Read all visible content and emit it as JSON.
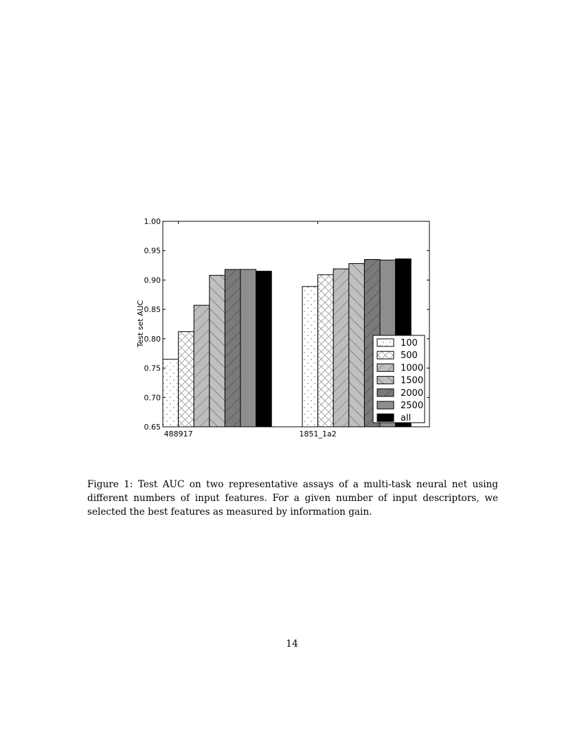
{
  "chart_data": {
    "type": "bar",
    "title": "",
    "xlabel": "",
    "ylabel": "Test set AUC",
    "ylim": [
      0.65,
      1.0
    ],
    "yticks": [
      "0.65",
      "0.70",
      "0.75",
      "0.80",
      "0.85",
      "0.90",
      "0.95",
      "1.00"
    ],
    "categories": [
      "488917",
      "1851_1a2"
    ],
    "grid": false,
    "legend_position": "lower-right",
    "series": [
      {
        "name": "100",
        "values": [
          0.765,
          0.889
        ],
        "fill": "#ffffff",
        "pattern": "dots"
      },
      {
        "name": "500",
        "values": [
          0.812,
          0.909
        ],
        "fill": "#ffffff",
        "pattern": "crosshatch"
      },
      {
        "name": "1000",
        "values": [
          0.857,
          0.919
        ],
        "fill": "#bdbdbd",
        "pattern": "forward-diagonal"
      },
      {
        "name": "1500",
        "values": [
          0.908,
          0.928
        ],
        "fill": "#c0c0c0",
        "pattern": "back-diagonal"
      },
      {
        "name": "2000",
        "values": [
          0.918,
          0.935
        ],
        "fill": "#7a7a7a",
        "pattern": "forward-diagonal"
      },
      {
        "name": "2500",
        "values": [
          0.918,
          0.934
        ],
        "fill": "#8e8e8e",
        "pattern": "none"
      },
      {
        "name": "all",
        "values": [
          0.915,
          0.936
        ],
        "fill": "#000000",
        "pattern": "none"
      }
    ]
  },
  "caption": "Figure 1: Test AUC on two representative assays of a multi-task neural net using different numbers of input features. For a given number of input descriptors, we selected the best features as measured by information gain.",
  "page_number": "14"
}
